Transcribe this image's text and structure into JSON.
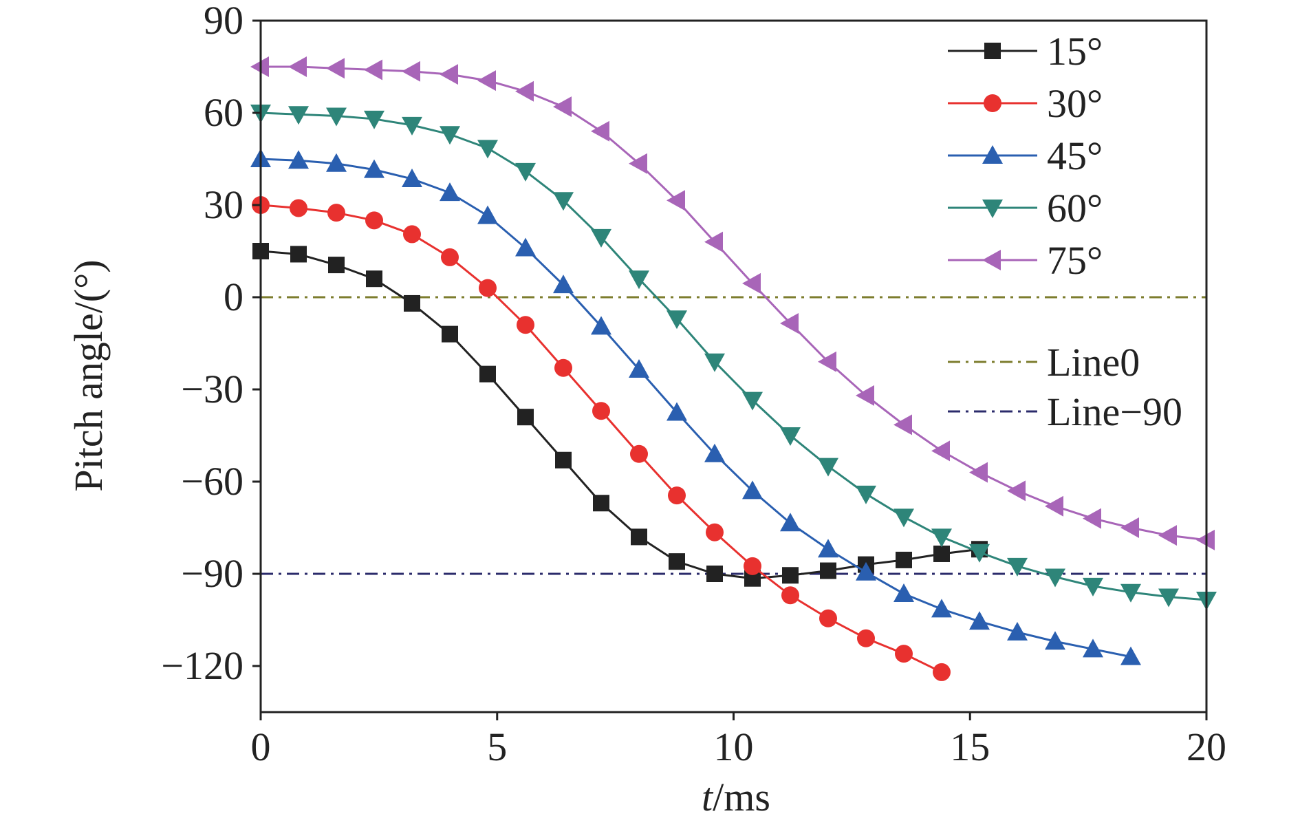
{
  "chart_data": {
    "type": "line",
    "xlabel_italic": "t",
    "xlabel_rest": "/ms",
    "ylabel": "Pitch angle/(°)",
    "xlim": [
      0,
      20
    ],
    "ylim": [
      -135,
      90
    ],
    "x_ticks": [
      0,
      5,
      10,
      15,
      20
    ],
    "x_tick_labels": [
      "0",
      "5",
      "10",
      "15",
      "20"
    ],
    "y_ticks": [
      90,
      60,
      30,
      0,
      -30,
      -60,
      -90,
      -120
    ],
    "y_tick_labels": [
      "90",
      "60",
      "30",
      "0",
      "−30",
      "−60",
      "−90",
      "−120"
    ],
    "legend_position": "top-right",
    "series": [
      {
        "name": "15°",
        "color": "#222222",
        "marker": "square",
        "x": [
          0,
          0.8,
          1.6,
          2.4,
          3.2,
          4.0,
          4.8,
          5.6,
          6.4,
          7.2,
          8.0,
          8.8,
          9.6,
          10.4,
          11.2,
          12.0,
          12.8,
          13.6,
          14.4,
          15.2
        ],
        "y": [
          15,
          14,
          10.5,
          6,
          -2,
          -12,
          -25,
          -39,
          -53,
          -67,
          -78,
          -86,
          -90,
          -91.5,
          -90.5,
          -89,
          -87,
          -85.5,
          -83.5,
          -82
        ]
      },
      {
        "name": "30°",
        "color": "#e8312f",
        "marker": "circle",
        "x": [
          0,
          0.8,
          1.6,
          2.4,
          3.2,
          4.0,
          4.8,
          5.6,
          6.4,
          7.2,
          8.0,
          8.8,
          9.6,
          10.4,
          11.2,
          12.0,
          12.8,
          13.6,
          14.4
        ],
        "y": [
          30,
          29,
          27.5,
          25,
          20.5,
          13,
          3,
          -9,
          -23,
          -37,
          -51,
          -64.5,
          -76.5,
          -87.5,
          -97,
          -104.5,
          -111,
          -116,
          -122
        ]
      },
      {
        "name": "45°",
        "color": "#2a5fb0",
        "marker": "triangle-up",
        "x": [
          0,
          0.8,
          1.6,
          2.4,
          3.2,
          4.0,
          4.8,
          5.6,
          6.4,
          7.2,
          8.0,
          8.8,
          9.6,
          10.4,
          11.2,
          12.0,
          12.8,
          13.6,
          14.4,
          15.2,
          16.0,
          16.8,
          17.6,
          18.4
        ],
        "y": [
          45,
          44.5,
          43.5,
          41.5,
          38.5,
          34,
          26.5,
          16,
          4,
          -9.5,
          -23.5,
          -37.5,
          -51,
          -63,
          -73.5,
          -82,
          -89.5,
          -96.5,
          -101.5,
          -105.5,
          -109,
          -112,
          -114.5,
          -117
        ]
      },
      {
        "name": "60°",
        "color": "#2e8579",
        "marker": "triangle-down",
        "x": [
          0,
          0.8,
          1.6,
          2.4,
          3.2,
          4.0,
          4.8,
          5.6,
          6.4,
          7.2,
          8.0,
          8.8,
          9.6,
          10.4,
          11.2,
          12.0,
          12.8,
          13.6,
          14.4,
          15.2,
          16.0,
          16.8,
          17.6,
          18.4,
          19.2,
          20.0
        ],
        "y": [
          60,
          59.5,
          59,
          58,
          56,
          53,
          48.5,
          41,
          31.5,
          19.5,
          6,
          -7,
          -21,
          -33.5,
          -45,
          -55,
          -64,
          -71.5,
          -78,
          -83,
          -87.5,
          -91,
          -94,
          -96,
          -97.5,
          -98.5
        ]
      },
      {
        "name": "75°",
        "color": "#a865b8",
        "marker": "triangle-left",
        "x": [
          0,
          0.8,
          1.6,
          2.4,
          3.2,
          4.0,
          4.8,
          5.6,
          6.4,
          7.2,
          8.0,
          8.8,
          9.6,
          10.4,
          11.2,
          12.0,
          12.8,
          13.6,
          14.4,
          15.2,
          16.0,
          16.8,
          17.6,
          18.4,
          19.2,
          20.0
        ],
        "y": [
          75,
          75,
          74.5,
          74,
          73.5,
          72.5,
          70.5,
          67,
          62,
          54,
          43.5,
          31.5,
          18,
          4.5,
          -8.5,
          -21,
          -32,
          -41.5,
          -50,
          -57,
          -63,
          -68,
          -72,
          -75,
          -77.5,
          -79
        ]
      }
    ],
    "reference_lines": [
      {
        "name": "Line0",
        "y": 0,
        "color": "#7d7d2e",
        "dash": "dash-dot"
      },
      {
        "name": "Line−90",
        "y": -90,
        "color": "#2b2b6b",
        "dash": "dash-dot"
      }
    ]
  }
}
